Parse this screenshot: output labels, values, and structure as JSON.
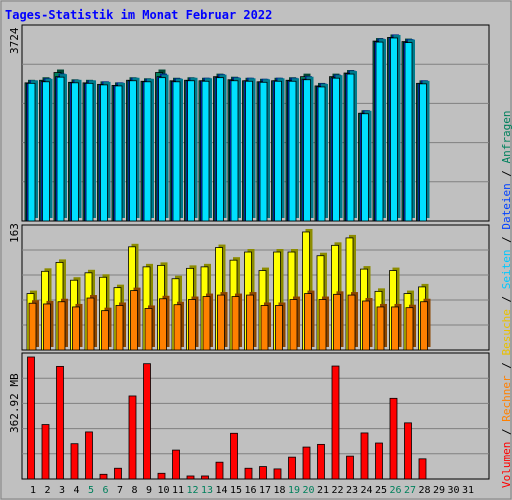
{
  "title": "Tages-Statistik im Monat Februar 2022",
  "legend": {
    "volume": "Volumen",
    "visits": "Rechner",
    "besuche": "Besuche",
    "seiten": "Seiten",
    "dateien": "Dateien",
    "anfragen": "Anfragen",
    "separator": " / "
  },
  "colors": {
    "background": "#c0c0c0",
    "title": "#0000ff",
    "anfragen": "#00805c",
    "dateien": "#0040ff",
    "seiten": "#00e0ff",
    "besuche": "#ffff00",
    "rechner": "#ff8000",
    "volumen": "#ff0000",
    "weekend_label": "#00805c"
  },
  "chart_data": [
    {
      "type": "bar",
      "panel": "top",
      "ylabel": "3724",
      "ylim": [
        0,
        3724
      ],
      "x": [
        1,
        2,
        3,
        4,
        5,
        6,
        7,
        8,
        9,
        10,
        11,
        12,
        13,
        14,
        15,
        16,
        17,
        18,
        19,
        20,
        21,
        22,
        23,
        24,
        25,
        26,
        27,
        28,
        29,
        30,
        31
      ],
      "series": [
        {
          "name": "Anfragen",
          "values": [
            2680,
            2730,
            2880,
            2690,
            2680,
            2650,
            2630,
            2730,
            2710,
            2880,
            2720,
            2730,
            2720,
            2800,
            2740,
            2720,
            2700,
            2720,
            2730,
            2800,
            2620,
            2800,
            2870,
            2090,
            3490,
            3560,
            3480,
            2670,
            null,
            null,
            null
          ]
        },
        {
          "name": "Dateien",
          "values": [
            2670,
            2710,
            2800,
            2680,
            2670,
            2650,
            2630,
            2720,
            2700,
            2800,
            2710,
            2720,
            2720,
            2790,
            2730,
            2720,
            2700,
            2720,
            2720,
            2750,
            2610,
            2780,
            2860,
            2090,
            3480,
            3560,
            3470,
            2670,
            null,
            null,
            null
          ]
        },
        {
          "name": "Seiten",
          "values": [
            2670,
            2700,
            2790,
            2680,
            2670,
            2640,
            2620,
            2720,
            2700,
            2780,
            2700,
            2720,
            2710,
            2780,
            2720,
            2710,
            2690,
            2710,
            2710,
            2740,
            2600,
            2770,
            2850,
            2080,
            3470,
            3550,
            3460,
            2660,
            null,
            null,
            null
          ]
        }
      ]
    },
    {
      "type": "bar",
      "panel": "middle",
      "ylabel": "163",
      "ylim": [
        0,
        163
      ],
      "x": [
        1,
        2,
        3,
        4,
        5,
        6,
        7,
        8,
        9,
        10,
        11,
        12,
        13,
        14,
        15,
        16,
        17,
        18,
        19,
        20,
        21,
        22,
        23,
        24,
        25,
        26,
        27,
        28,
        29,
        30,
        31
      ],
      "series": [
        {
          "name": "Besuche",
          "values": [
            76,
            106,
            118,
            94,
            104,
            98,
            84,
            139,
            112,
            114,
            96,
            110,
            112,
            138,
            121,
            132,
            107,
            132,
            132,
            159,
            127,
            141,
            151,
            109,
            79,
            107,
            76,
            85,
            null,
            null,
            null
          ]
        },
        {
          "name": "Rechner",
          "values": [
            63,
            62,
            65,
            58,
            70,
            53,
            60,
            80,
            56,
            69,
            61,
            68,
            72,
            74,
            72,
            74,
            60,
            60,
            68,
            76,
            68,
            75,
            74,
            66,
            58,
            58,
            57,
            65,
            null,
            null,
            null
          ]
        }
      ]
    },
    {
      "type": "bar",
      "panel": "bottom",
      "ylabel": "362.92 MB",
      "ylim": [
        0,
        362.92
      ],
      "x": [
        1,
        2,
        3,
        4,
        5,
        6,
        7,
        8,
        9,
        10,
        11,
        12,
        13,
        14,
        15,
        16,
        17,
        18,
        19,
        20,
        21,
        22,
        23,
        24,
        25,
        26,
        27,
        28,
        29,
        30,
        31
      ],
      "series": [
        {
          "name": "Volumen",
          "values": [
            362.92,
            162,
            335,
            105,
            140,
            14,
            32,
            247,
            343,
            17,
            86,
            9,
            9,
            50,
            136,
            32,
            37,
            30,
            65,
            95,
            103,
            336,
            68,
            137,
            107,
            240,
            167,
            60,
            null,
            null,
            null
          ]
        }
      ]
    }
  ],
  "x_tick_labels": [
    "1",
    "2",
    "3",
    "4",
    "5",
    "6",
    "7",
    "8",
    "9",
    "10",
    "11",
    "12",
    "13",
    "14",
    "15",
    "16",
    "17",
    "18",
    "19",
    "20",
    "21",
    "22",
    "23",
    "24",
    "25",
    "26",
    "27",
    "28",
    "29",
    "30",
    "31"
  ],
  "weekend_days": [
    5,
    6,
    12,
    13,
    19,
    20,
    26,
    27
  ]
}
